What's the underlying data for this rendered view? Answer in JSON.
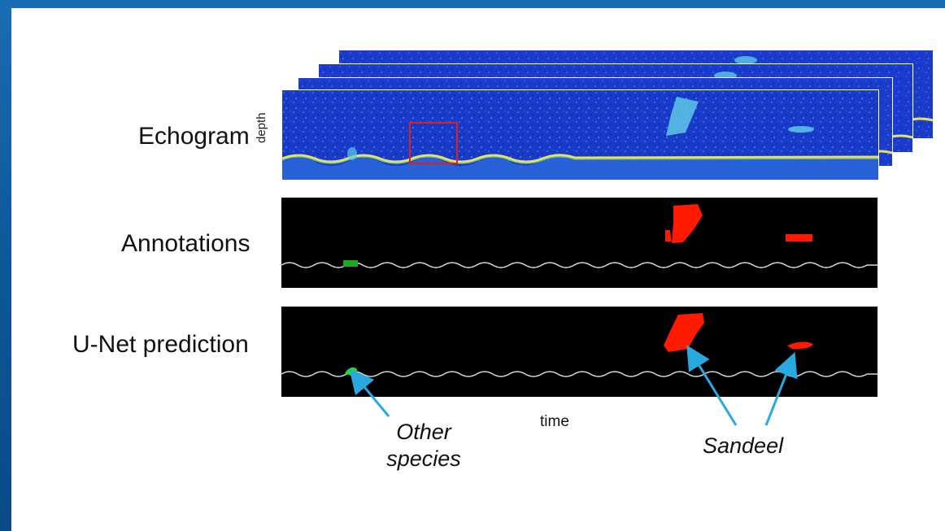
{
  "rows": {
    "echogram_label": "Echogram",
    "annotations_label": "Annotations",
    "prediction_label": "U-Net prediction"
  },
  "axes": {
    "depth_label": "depth",
    "time_label": "time"
  },
  "callouts": {
    "other_species": "Other\nspecies",
    "sandeel": "Sandeel"
  },
  "colors": {
    "sandeel": "#ff1a00",
    "other_species": "#22dd22",
    "echogram_blue": "#1c3fd0",
    "seabed": "#e8e060",
    "arrow": "#29a9e0",
    "crop_box": "#e02020",
    "slide_border": "#0d5799"
  }
}
